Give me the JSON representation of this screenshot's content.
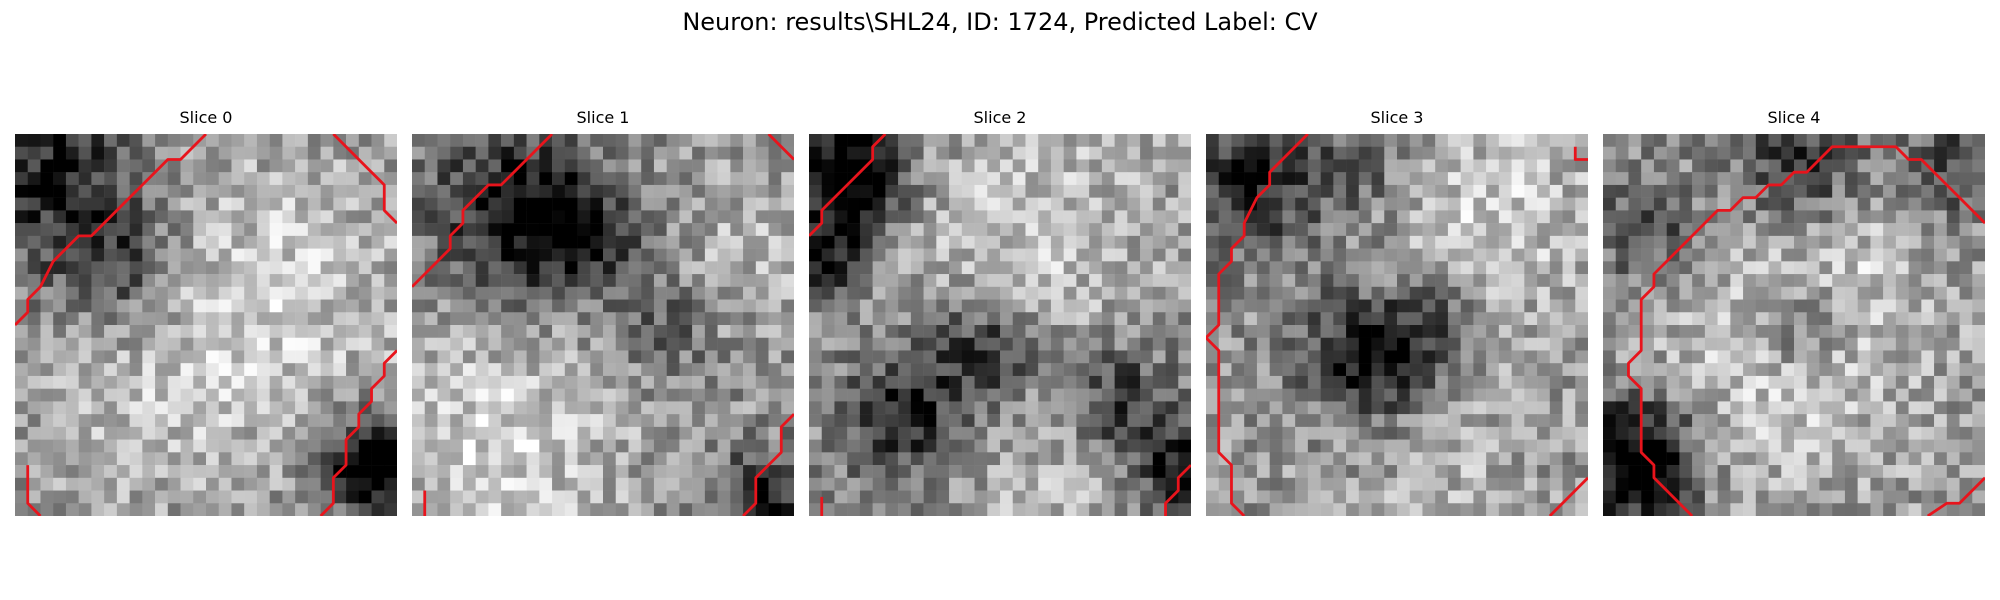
{
  "figure": {
    "title": "Neuron: results\\SHL24, ID: 1724, Predicted Label: CV",
    "contour_color": "#e8141c",
    "colormap": "gray",
    "grid_size": 30
  },
  "panels": [
    {
      "title": "Slice 0",
      "contours": [
        [
          [
            -0.5,
            14.5
          ],
          [
            0.5,
            13.5
          ],
          [
            0.5,
            12.5
          ],
          [
            1.5,
            11.5
          ],
          [
            2.5,
            9.5
          ],
          [
            3.5,
            8.5
          ],
          [
            4.5,
            7.5
          ],
          [
            5.5,
            7.5
          ],
          [
            6.5,
            6.5
          ],
          [
            7.5,
            5.5
          ],
          [
            8.5,
            4.5
          ],
          [
            9.5,
            3.5
          ],
          [
            10.5,
            2.5
          ],
          [
            11.5,
            1.5
          ],
          [
            12.5,
            1.5
          ],
          [
            13.5,
            0.5
          ],
          [
            14.5,
            -0.5
          ]
        ],
        [
          [
            24.5,
            -0.5
          ],
          [
            25.5,
            0.5
          ],
          [
            26.5,
            1.5
          ],
          [
            27.5,
            2.5
          ],
          [
            28.5,
            3.5
          ],
          [
            28.5,
            5.5
          ],
          [
            29.5,
            6.5
          ]
        ],
        [
          [
            29.5,
            16.5
          ],
          [
            28.5,
            17.5
          ],
          [
            28.5,
            18.5
          ],
          [
            27.5,
            19.5
          ],
          [
            27.5,
            20.5
          ],
          [
            26.5,
            21.5
          ],
          [
            26.5,
            22.5
          ],
          [
            25.5,
            23.5
          ],
          [
            25.5,
            25.5
          ],
          [
            24.5,
            26.5
          ],
          [
            24.5,
            28.5
          ],
          [
            23.5,
            29.5
          ]
        ],
        [
          [
            0.5,
            25.5
          ],
          [
            0.5,
            28.5
          ],
          [
            1.5,
            29.5
          ]
        ]
      ],
      "dark_spots": [
        {
          "cx": 28.0,
          "cy": 25.5,
          "r": 2.6,
          "s": 0.85
        },
        {
          "cx": 2.0,
          "cy": 2.0,
          "r": 5.0,
          "s": 0.45
        },
        {
          "cx": 7.0,
          "cy": 9.5,
          "r": 3.5,
          "s": 0.35
        }
      ],
      "bright_spots": [
        {
          "cx": 20.0,
          "cy": 12.0,
          "r": 8.0,
          "s": 0.22
        },
        {
          "cx": 10.0,
          "cy": 22.0,
          "r": 6.0,
          "s": 0.12
        }
      ],
      "seed": 11
    },
    {
      "title": "Slice 1",
      "contours": [
        [
          [
            -0.5,
            11.5
          ],
          [
            0.5,
            10.5
          ],
          [
            1.5,
            9.5
          ],
          [
            2.5,
            8.5
          ],
          [
            2.5,
            7.5
          ],
          [
            3.5,
            6.5
          ],
          [
            3.5,
            5.5
          ],
          [
            4.5,
            4.5
          ],
          [
            5.5,
            3.5
          ],
          [
            6.5,
            3.5
          ],
          [
            7.5,
            2.5
          ],
          [
            8.5,
            1.5
          ],
          [
            9.5,
            0.5
          ],
          [
            10.5,
            -0.5
          ]
        ],
        [
          [
            27.5,
            -0.5
          ],
          [
            28.5,
            0.5
          ],
          [
            29.5,
            1.5
          ]
        ],
        [
          [
            29.5,
            21.5
          ],
          [
            28.5,
            22.5
          ],
          [
            28.5,
            24.5
          ],
          [
            27.5,
            25.5
          ],
          [
            26.5,
            26.5
          ],
          [
            26.5,
            28.5
          ],
          [
            25.5,
            29.5
          ]
        ],
        [
          [
            0.5,
            27.5
          ],
          [
            0.5,
            29.5
          ]
        ]
      ],
      "dark_spots": [
        {
          "cx": 7.5,
          "cy": 5.5,
          "r": 4.5,
          "s": 0.55
        },
        {
          "cx": 13.0,
          "cy": 7.5,
          "r": 3.0,
          "s": 0.4
        },
        {
          "cx": 27.0,
          "cy": 28.0,
          "r": 2.5,
          "s": 0.5
        },
        {
          "cx": 19.0,
          "cy": 15.0,
          "r": 2.5,
          "s": 0.25
        }
      ],
      "bright_spots": [
        {
          "cx": 6.0,
          "cy": 24.0,
          "r": 7.0,
          "s": 0.25
        },
        {
          "cx": 27.0,
          "cy": 8.0,
          "r": 4.0,
          "s": 0.15
        }
      ],
      "seed": 23
    },
    {
      "title": "Slice 2",
      "contours": [
        [
          [
            -0.5,
            7.5
          ],
          [
            0.5,
            6.5
          ],
          [
            0.5,
            5.5
          ],
          [
            1.5,
            4.5
          ],
          [
            2.5,
            3.5
          ],
          [
            3.5,
            2.5
          ],
          [
            4.5,
            1.5
          ],
          [
            4.5,
            0.5
          ],
          [
            5.5,
            -0.5
          ]
        ],
        [
          [
            29.5,
            25.5
          ],
          [
            28.5,
            26.5
          ],
          [
            28.5,
            27.5
          ],
          [
            27.5,
            28.5
          ],
          [
            27.5,
            29.5
          ]
        ],
        [
          [
            0.5,
            28.0
          ],
          [
            0.5,
            29.5
          ]
        ]
      ],
      "dark_spots": [
        {
          "cx": 3.0,
          "cy": 2.5,
          "r": 3.0,
          "s": 0.7
        },
        {
          "cx": 0.5,
          "cy": 9.0,
          "r": 2.5,
          "s": 0.55
        },
        {
          "cx": 7.0,
          "cy": 21.5,
          "r": 3.5,
          "s": 0.45
        },
        {
          "cx": 13.5,
          "cy": 16.5,
          "r": 3.0,
          "s": 0.4
        },
        {
          "cx": 24.0,
          "cy": 20.5,
          "r": 3.0,
          "s": 0.4
        },
        {
          "cx": 29.0,
          "cy": 26.0,
          "r": 2.5,
          "s": 0.55
        }
      ],
      "bright_spots": [
        {
          "cx": 17.0,
          "cy": 7.0,
          "r": 7.0,
          "s": 0.2
        },
        {
          "cx": 18.0,
          "cy": 27.0,
          "r": 5.0,
          "s": 0.12
        }
      ],
      "seed": 37
    },
    {
      "title": "Slice 3",
      "contours": [
        [
          [
            7.5,
            -0.5
          ],
          [
            6.5,
            0.5
          ],
          [
            5.5,
            1.5
          ],
          [
            4.5,
            2.5
          ],
          [
            4.5,
            3.5
          ],
          [
            3.5,
            4.5
          ],
          [
            2.5,
            6.5
          ],
          [
            2.5,
            7.5
          ],
          [
            1.5,
            8.5
          ],
          [
            1.5,
            9.5
          ],
          [
            0.5,
            10.5
          ],
          [
            0.5,
            14.5
          ],
          [
            -0.5,
            15.5
          ]
        ],
        [
          [
            -0.5,
            15.5
          ],
          [
            0.5,
            16.5
          ],
          [
            0.5,
            24.5
          ],
          [
            1.5,
            25.5
          ],
          [
            1.5,
            28.5
          ],
          [
            2.5,
            29.5
          ]
        ],
        [
          [
            28.5,
            0.5
          ],
          [
            28.5,
            1.5
          ],
          [
            29.5,
            1.5
          ]
        ],
        [
          [
            29.5,
            26.5
          ],
          [
            28.5,
            27.5
          ],
          [
            27.5,
            28.5
          ],
          [
            26.5,
            29.5
          ]
        ]
      ],
      "dark_spots": [
        {
          "cx": 12.5,
          "cy": 17.0,
          "r": 3.5,
          "s": 0.6
        },
        {
          "cx": 18.0,
          "cy": 14.0,
          "r": 2.5,
          "s": 0.25
        },
        {
          "cx": 3.0,
          "cy": 3.0,
          "r": 4.0,
          "s": 0.45
        },
        {
          "cx": 12.0,
          "cy": 2.0,
          "r": 3.0,
          "s": 0.2
        }
      ],
      "bright_spots": [
        {
          "cx": 22.0,
          "cy": 6.0,
          "r": 6.0,
          "s": 0.22
        },
        {
          "cx": 18.0,
          "cy": 25.0,
          "r": 5.5,
          "s": 0.12
        }
      ],
      "seed": 51
    },
    {
      "title": "Slice 4",
      "contours": [
        [
          [
            29.5,
            6.5
          ],
          [
            28.5,
            5.5
          ],
          [
            27.5,
            4.5
          ],
          [
            26.5,
            3.5
          ],
          [
            25.5,
            2.5
          ],
          [
            24.5,
            1.5
          ],
          [
            23.5,
            1.5
          ],
          [
            23.5,
            1.5
          ],
          [
            22.5,
            0.5
          ],
          [
            17.5,
            0.5
          ],
          [
            16.5,
            1.5
          ],
          [
            15.5,
            2.5
          ],
          [
            14.5,
            2.5
          ],
          [
            13.5,
            3.5
          ],
          [
            12.5,
            3.5
          ],
          [
            11.5,
            4.5
          ],
          [
            10.5,
            4.5
          ],
          [
            9.5,
            5.5
          ],
          [
            8.5,
            5.5
          ],
          [
            7.5,
            6.5
          ],
          [
            6.5,
            7.5
          ],
          [
            5.5,
            8.5
          ],
          [
            4.5,
            9.5
          ],
          [
            3.5,
            10.5
          ],
          [
            3.5,
            11.5
          ],
          [
            2.5,
            12.5
          ],
          [
            2.5,
            13.5
          ],
          [
            2.5,
            15.5
          ],
          [
            2.5,
            16.5
          ],
          [
            1.5,
            17.5
          ],
          [
            1.5,
            18.5
          ],
          [
            2.5,
            19.5
          ],
          [
            2.5,
            24.5
          ],
          [
            3.5,
            25.5
          ],
          [
            3.5,
            26.5
          ],
          [
            4.5,
            27.5
          ],
          [
            5.5,
            28.5
          ],
          [
            6.5,
            29.5
          ]
        ],
        [
          [
            25.0,
            29.5
          ],
          [
            26.5,
            28.5
          ],
          [
            27.5,
            28.5
          ],
          [
            28.5,
            27.5
          ],
          [
            29.5,
            26.5
          ]
        ]
      ],
      "dark_spots": [
        {
          "cx": 2.0,
          "cy": 25.0,
          "r": 3.5,
          "s": 0.75
        },
        {
          "cx": 15.0,
          "cy": 2.0,
          "r": 3.5,
          "s": 0.45
        },
        {
          "cx": 3.0,
          "cy": 7.0,
          "r": 3.0,
          "s": 0.35
        },
        {
          "cx": 15.0,
          "cy": 14.5,
          "r": 2.5,
          "s": 0.3
        },
        {
          "cx": 27.0,
          "cy": 2.5,
          "r": 3.0,
          "s": 0.35
        }
      ],
      "bright_spots": [
        {
          "cx": 13.0,
          "cy": 17.0,
          "r": 8.0,
          "s": 0.22
        },
        {
          "cx": 20.0,
          "cy": 8.0,
          "r": 5.0,
          "s": 0.12
        }
      ],
      "seed": 67
    }
  ]
}
